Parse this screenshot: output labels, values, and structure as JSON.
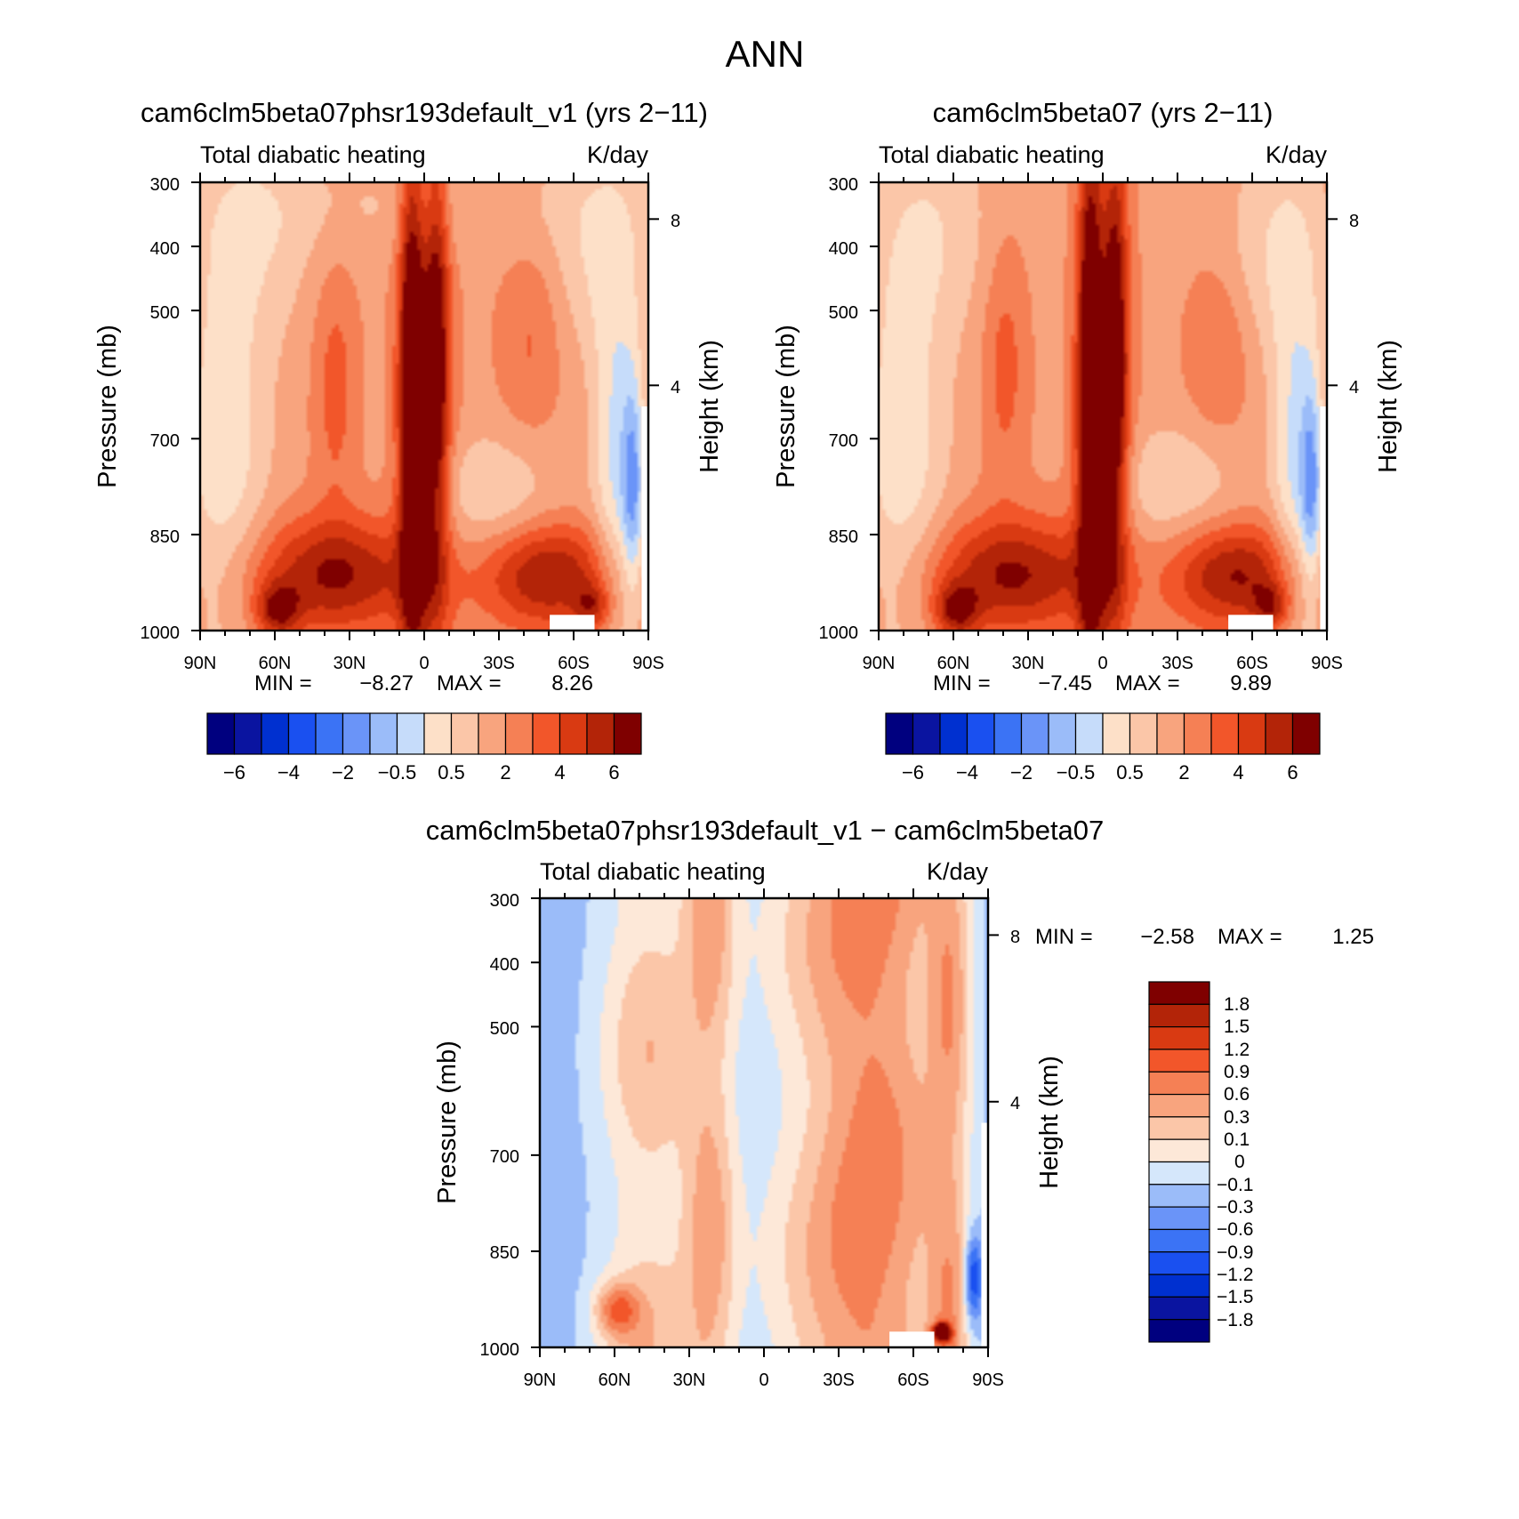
{
  "title": "ANN",
  "colors": {
    "diverging_16": [
      "#00007f",
      "#0a14a0",
      "#0030d0",
      "#1a50f0",
      "#3b73f5",
      "#6a94f8",
      "#9bbcf9",
      "#c6dcfa",
      "#fde0c8",
      "#fbc6a8",
      "#f8a47e",
      "#f58055",
      "#f2562a",
      "#d93a12",
      "#b32408",
      "#7f0000"
    ],
    "difference_16": [
      "#00007f",
      "#0a14a0",
      "#0030d0",
      "#1a50f0",
      "#3b73f5",
      "#6a94f8",
      "#9bbcf9",
      "#d5e7fb",
      "#fde8d8",
      "#fbc6a8",
      "#f8a47e",
      "#f58055",
      "#f2562a",
      "#d93a12",
      "#b32408",
      "#7f0000"
    ]
  },
  "chart_data": [
    {
      "type": "heatmap",
      "title": "cam6clm5beta07phsr193default_v1 (yrs 2−11)",
      "subtitle_left": "Total diabatic heating",
      "subtitle_right": "K/day",
      "ylabel": "Pressure (mb)",
      "ylabel_right": "Height (km)",
      "x_ticks": [
        "90N",
        "60N",
        "30N",
        "0",
        "30S",
        "60S",
        "90S"
      ],
      "y_ticks": [
        "300",
        "400",
        "500",
        "700",
        "850",
        "1000"
      ],
      "y_right_ticks": [
        "8",
        "4"
      ],
      "xlim": [
        90,
        -90
      ],
      "ylim": [
        1000,
        300
      ],
      "min_label": "MIN =",
      "min_value": "−8.27",
      "max_label": "MAX =",
      "max_value": "8.26",
      "colorbar_labels": [
        "−6",
        "−4",
        "−2",
        "−0.5",
        "0.5",
        "2",
        "4",
        "6"
      ]
    },
    {
      "type": "heatmap",
      "title": "cam6clm5beta07 (yrs 2−11)",
      "subtitle_left": "Total diabatic heating",
      "subtitle_right": "K/day",
      "ylabel": "Pressure (mb)",
      "ylabel_right": "Height (km)",
      "x_ticks": [
        "90N",
        "60N",
        "30N",
        "0",
        "30S",
        "60S",
        "90S"
      ],
      "y_ticks": [
        "300",
        "400",
        "500",
        "700",
        "850",
        "1000"
      ],
      "y_right_ticks": [
        "8",
        "4"
      ],
      "xlim": [
        90,
        -90
      ],
      "ylim": [
        1000,
        300
      ],
      "min_label": "MIN =",
      "min_value": "−7.45",
      "max_label": "MAX =",
      "max_value": "9.89",
      "colorbar_labels": [
        "−6",
        "−4",
        "−2",
        "−0.5",
        "0.5",
        "2",
        "4",
        "6"
      ]
    },
    {
      "type": "heatmap",
      "title": "cam6clm5beta07phsr193default_v1 − cam6clm5beta07",
      "subtitle_left": "Total diabatic heating",
      "subtitle_right": "K/day",
      "ylabel": "Pressure (mb)",
      "ylabel_right": "Height (km)",
      "x_ticks": [
        "90N",
        "60N",
        "30N",
        "0",
        "30S",
        "60S",
        "90S"
      ],
      "y_ticks": [
        "300",
        "400",
        "500",
        "700",
        "850",
        "1000"
      ],
      "y_right_ticks": [
        "8",
        "4"
      ],
      "xlim": [
        90,
        -90
      ],
      "ylim": [
        1000,
        300
      ],
      "min_label": "MIN =",
      "min_value": "−2.58",
      "max_label": "MAX =",
      "max_value": "1.25",
      "colorbar_labels": [
        "1.8",
        "1.5",
        "1.2",
        "0.9",
        "0.6",
        "0.3",
        "0.1",
        "0",
        "−0.1",
        "−0.3",
        "−0.6",
        "−0.9",
        "−1.2",
        "−1.5",
        "−1.8"
      ]
    }
  ]
}
